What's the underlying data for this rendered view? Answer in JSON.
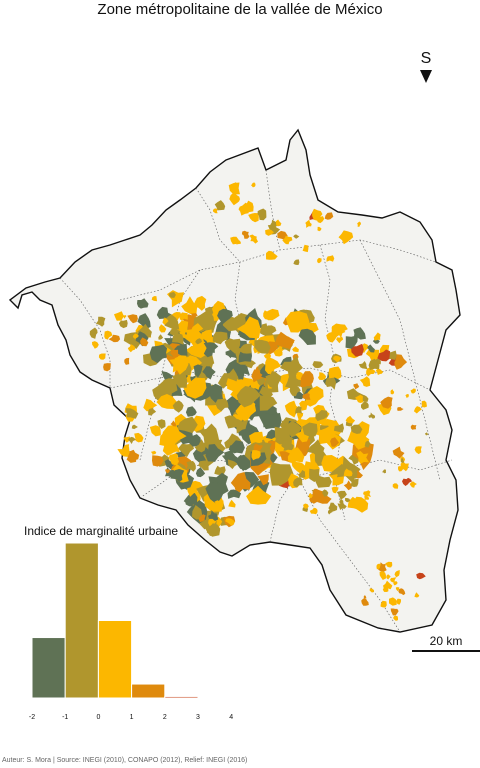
{
  "map": {
    "title": "Zone métropolitaine de la vallée de México",
    "north_label": "S",
    "scale_label": "20 km",
    "colors": {
      "land": "#f3f3f0",
      "outline": "#111111",
      "class_neg2": "#5f7255",
      "class_neg1": "#b0962d",
      "class_0": "#fcb700",
      "class_1": "#df8a0d",
      "class_2": "#c7431a"
    }
  },
  "legend": {
    "title": "Indice de marginalité urbaine",
    "ticks": [
      "-2",
      "-1",
      "0",
      "1",
      "2",
      "3",
      "4"
    ],
    "bins": [
      {
        "from": -2,
        "to": -1,
        "value": 0.39,
        "color": "#5f7255"
      },
      {
        "from": -1,
        "to": 0,
        "value": 1.0,
        "color": "#b0962d"
      },
      {
        "from": 0,
        "to": 1,
        "value": 0.5,
        "color": "#fcb700"
      },
      {
        "from": 1,
        "to": 2,
        "value": 0.09,
        "color": "#df8a0d"
      },
      {
        "from": 2,
        "to": 3,
        "value": 0.01,
        "color": "#c7431a"
      }
    ]
  },
  "credits": "Auteur: S. Mora | Source: INEGI (2010), CONAPO (2012), Relief: INEGI (2016)"
}
